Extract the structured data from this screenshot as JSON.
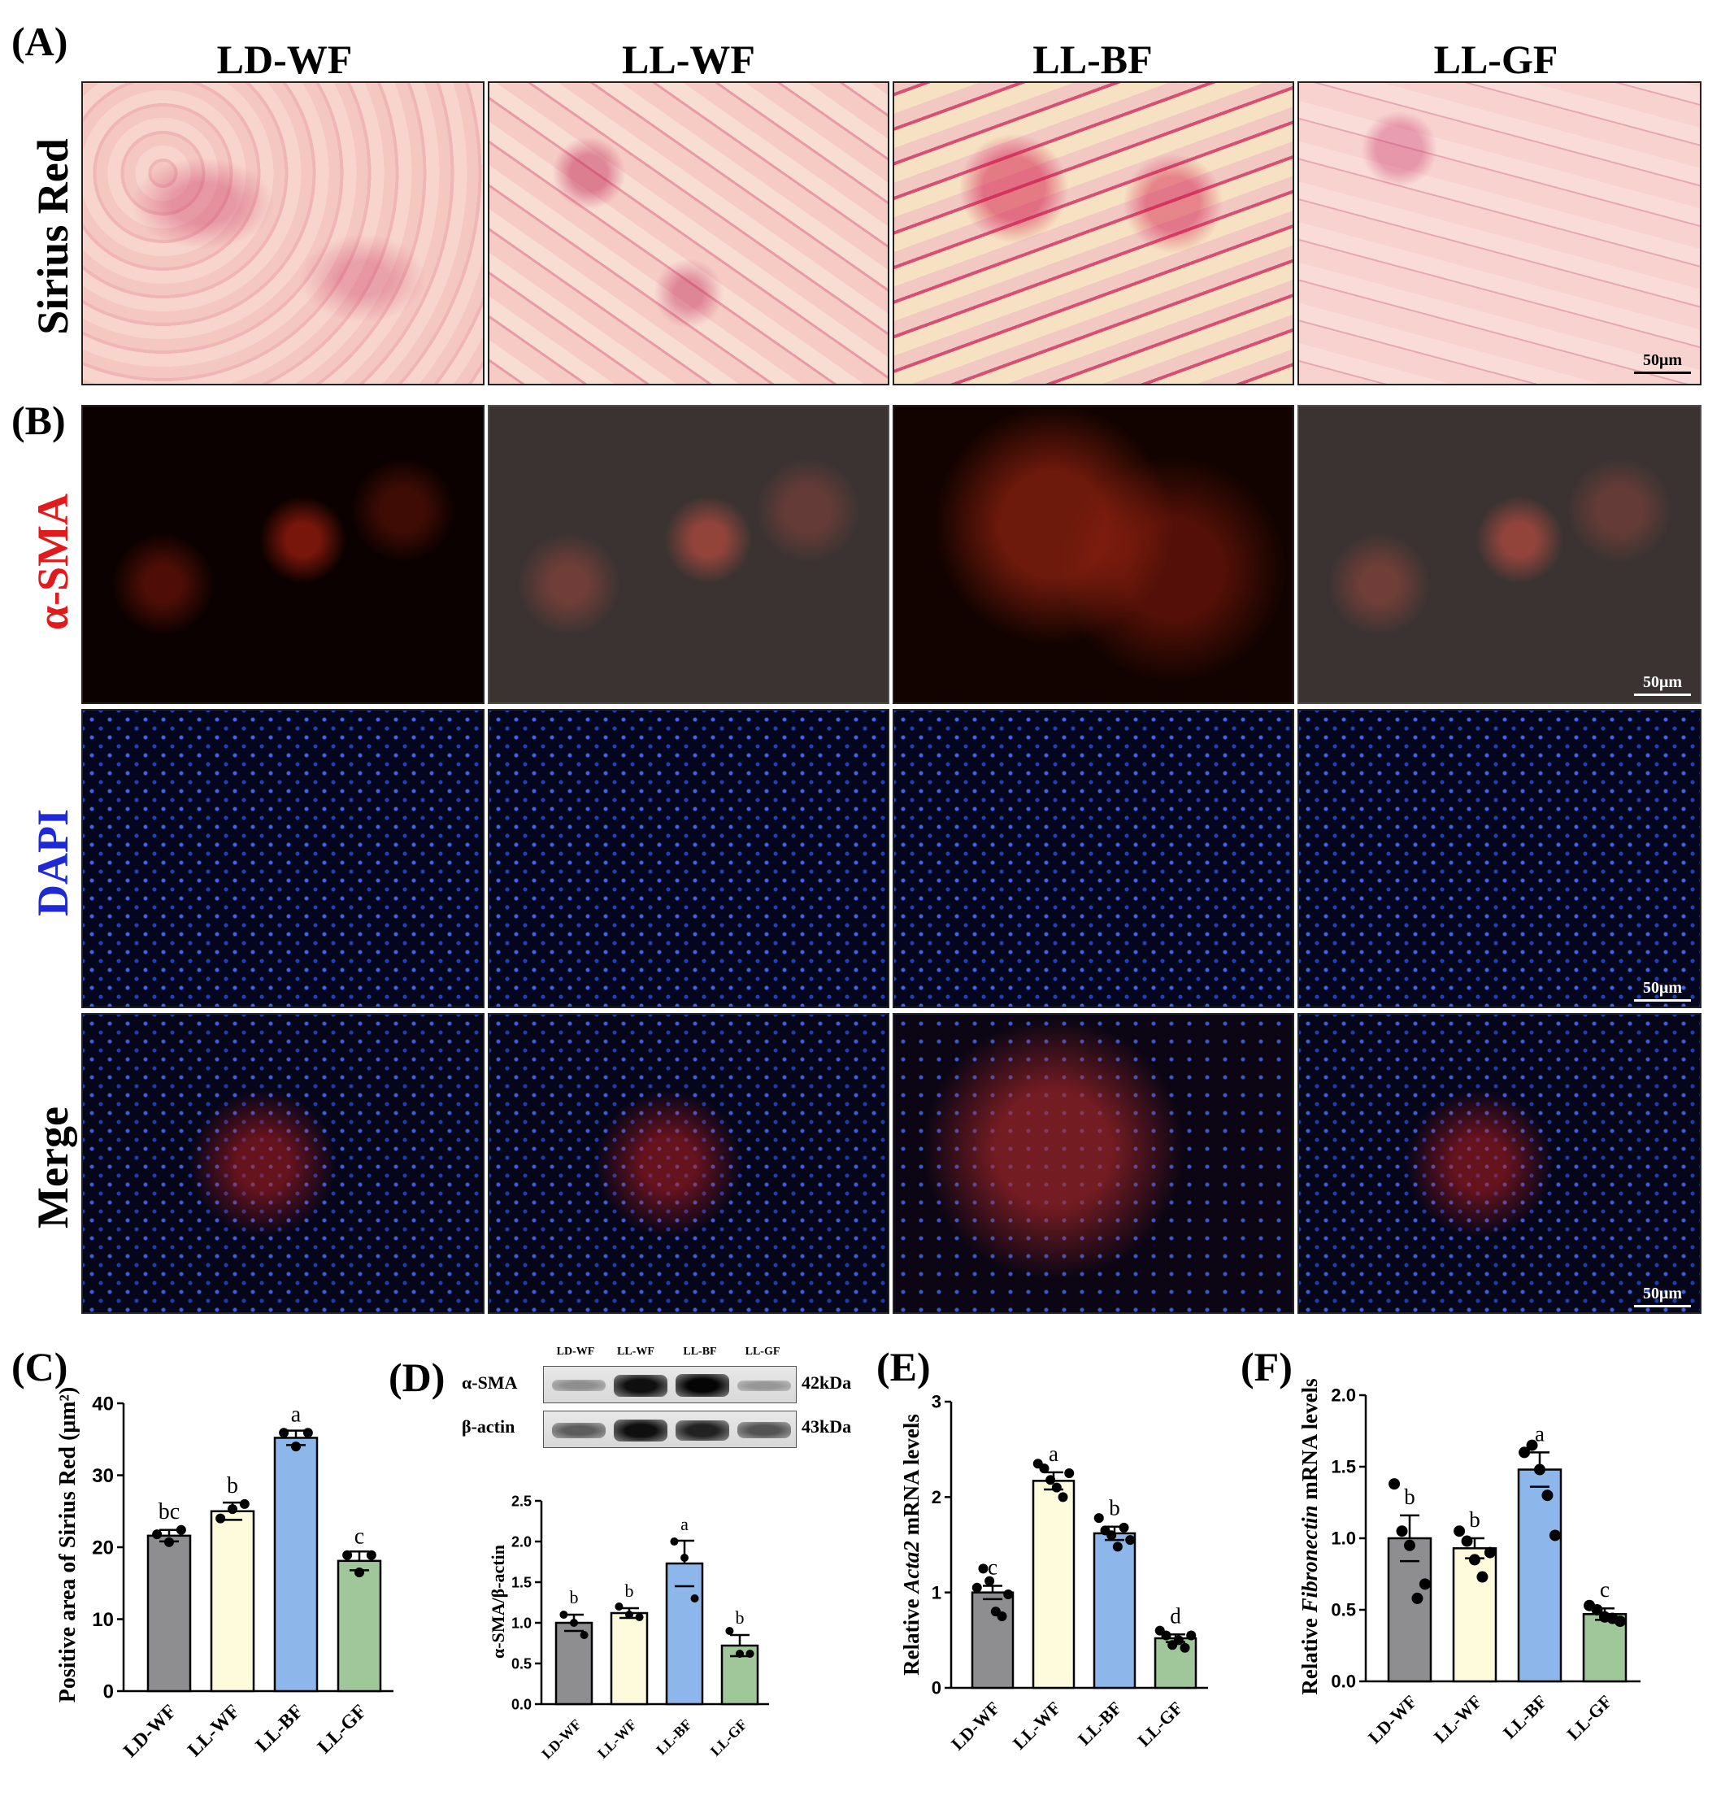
{
  "panels": {
    "A": "(A)",
    "B": "(B)",
    "C": "(C)",
    "D": "(D)",
    "E": "(E)",
    "F": "(F)"
  },
  "groups": [
    "LD-WF",
    "LL-WF",
    "LL-BF",
    "LL-GF"
  ],
  "rows": {
    "sirius": "Sirius Red",
    "sma": "α-SMA",
    "dapi": "DAPI",
    "merge": "Merge"
  },
  "scale_label": "50μm",
  "colors": {
    "LD-WF": "#8e8e90",
    "LL-WF": "#fdfbdc",
    "LL-BF": "#8db7ea",
    "LL-GF": "#9fc79a",
    "sma_text": "#e31a1c",
    "dapi_text": "#1f2ad6"
  },
  "blot": {
    "lanes": [
      "LD-WF",
      "LL-WF",
      "LL-BF",
      "LL-GF"
    ],
    "rows": [
      {
        "protein": "α-SMA",
        "size": "42kDa",
        "intensity": [
          0.3,
          0.95,
          1.0,
          0.25
        ]
      },
      {
        "protein": "β-actin",
        "size": "43kDa",
        "intensity": [
          0.55,
          0.95,
          0.85,
          0.6
        ]
      }
    ]
  },
  "chart_data": [
    {
      "id": "C",
      "type": "bar",
      "categories": [
        "LD-WF",
        "LL-WF",
        "LL-BF",
        "LL-GF"
      ],
      "values": [
        21.6,
        25.0,
        35.2,
        18.1
      ],
      "errors": [
        0.8,
        1.2,
        1.0,
        1.3
      ],
      "points": [
        [
          21.8,
          20.7,
          22.4
        ],
        [
          24.0,
          25.3,
          26.0
        ],
        [
          35.9,
          34.0,
          35.9
        ],
        [
          18.9,
          16.5,
          18.9
        ]
      ],
      "letters": [
        "bc",
        "b",
        "a",
        "c"
      ],
      "ylabel": "Positive area of Sirius Red (μm²)",
      "ylim": [
        0,
        40
      ],
      "yticks": [
        0,
        10,
        20,
        30,
        40
      ],
      "ytick_labels": [
        "0",
        "10",
        "20",
        "30",
        "40"
      ]
    },
    {
      "id": "D",
      "type": "bar",
      "categories": [
        "LD-WF",
        "LL-WF",
        "LL-BF",
        "LL-GF"
      ],
      "values": [
        1.0,
        1.12,
        1.73,
        0.72
      ],
      "errors": [
        0.1,
        0.06,
        0.28,
        0.13
      ],
      "points": [
        [
          1.1,
          1.0,
          0.85
        ],
        [
          1.2,
          1.1,
          1.07
        ],
        [
          2.0,
          1.8,
          1.3
        ],
        [
          0.9,
          0.62,
          0.62
        ]
      ],
      "letters": [
        "b",
        "b",
        "a",
        "b"
      ],
      "ylabel": "α-SMA/β-actin",
      "ylim": [
        0,
        2.5
      ],
      "yticks": [
        0,
        0.5,
        1.0,
        1.5,
        2.0,
        2.5
      ],
      "ytick_labels": [
        "0.0",
        "0.5",
        "1.0",
        "1.5",
        "2.0",
        "2.5"
      ]
    },
    {
      "id": "E",
      "type": "bar",
      "categories": [
        "LD-WF",
        "LL-WF",
        "LL-BF",
        "LL-GF"
      ],
      "values": [
        1.0,
        2.17,
        1.62,
        0.52
      ],
      "errors": [
        0.07,
        0.09,
        0.07,
        0.04
      ],
      "points": [
        [
          1.05,
          1.25,
          1.12,
          0.8,
          0.75,
          0.98
        ],
        [
          2.35,
          2.3,
          2.18,
          2.1,
          2.0,
          2.25
        ],
        [
          1.78,
          1.65,
          1.6,
          1.48,
          1.68,
          1.55
        ],
        [
          0.6,
          0.55,
          0.45,
          0.5,
          0.42,
          0.55
        ]
      ],
      "letters": [
        "c",
        "a",
        "b",
        "d"
      ],
      "ylabel_parts": [
        "Relative ",
        "Acta2",
        " mRNA levels"
      ],
      "ylim": [
        0,
        3
      ],
      "yticks": [
        0,
        1,
        2,
        3
      ],
      "ytick_labels": [
        "0",
        "1",
        "2",
        "3"
      ]
    },
    {
      "id": "F",
      "type": "bar",
      "categories": [
        "LD-WF",
        "LL-WF",
        "LL-BF",
        "LL-GF"
      ],
      "values": [
        1.0,
        0.93,
        1.48,
        0.47
      ],
      "errors": [
        0.16,
        0.07,
        0.12,
        0.04
      ],
      "points": [
        [
          1.38,
          1.05,
          0.95,
          0.58,
          0.68
        ],
        [
          1.05,
          0.98,
          0.85,
          0.73,
          0.9
        ],
        [
          1.6,
          1.65,
          1.48,
          1.3,
          1.02
        ],
        [
          0.53,
          0.5,
          0.45,
          0.44,
          0.42
        ]
      ],
      "letters": [
        "b",
        "b",
        "a",
        "c"
      ],
      "ylabel_parts": [
        "Relative ",
        "Fibronectin",
        " mRNA levels"
      ],
      "ylim": [
        0,
        2.0
      ],
      "yticks": [
        0,
        0.5,
        1.0,
        1.5,
        2.0
      ],
      "ytick_labels": [
        "0.0",
        "0.5",
        "1.0",
        "1.5",
        "2.0"
      ]
    }
  ]
}
